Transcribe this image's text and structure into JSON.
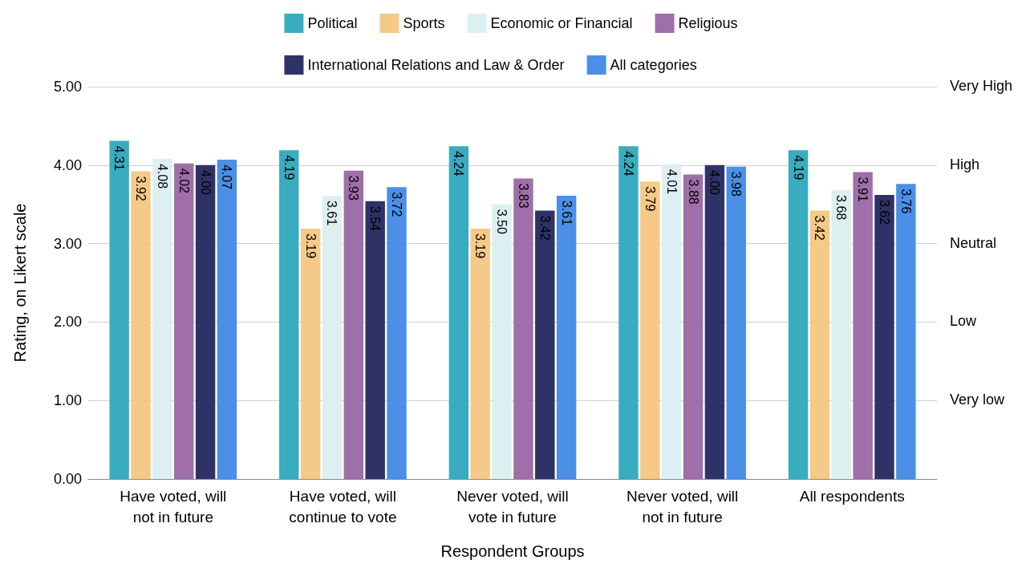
{
  "chart_data": {
    "type": "bar",
    "xlabel": "Respondent Groups",
    "ylabel": "Rating, on Likert scale",
    "categories": [
      "Have voted, will\nnot in future",
      "Have voted, will\ncontinue to vote",
      "Never voted, will\nvote in future",
      "Never voted, will\nnot in future",
      "All respondents"
    ],
    "series": [
      {
        "name": "Political",
        "color": "#3aacbf",
        "values": [
          4.31,
          4.19,
          4.24,
          4.24,
          4.19
        ],
        "value_labels": [
          "4.31",
          "4.19",
          "4.24",
          "4.24",
          "4.19"
        ]
      },
      {
        "name": "Sports",
        "color": "#f5c987",
        "values": [
          3.92,
          3.19,
          3.19,
          3.79,
          3.42
        ],
        "value_labels": [
          "3.92",
          "3.19",
          "3.19",
          "3.79",
          "3.42"
        ]
      },
      {
        "name": "Economic or Financial",
        "color": "#dcf0f2",
        "values": [
          4.08,
          3.61,
          3.5,
          4.01,
          3.68
        ],
        "value_labels": [
          "4.08",
          "3.61",
          "3.50",
          "4.01",
          "3.68"
        ]
      },
      {
        "name": "Religious",
        "color": "#9e6fa8",
        "values": [
          4.02,
          3.93,
          3.83,
          3.88,
          3.91
        ],
        "value_labels": [
          "4.02",
          "3.93",
          "3.83",
          "3.88",
          "3.91"
        ]
      },
      {
        "name": "International Relations and Law & Order",
        "color": "#2e3266",
        "values": [
          4.0,
          3.54,
          3.42,
          4.0,
          3.62
        ],
        "value_labels": [
          "4.00",
          "3.54",
          "3.42",
          "4.00",
          "3.62"
        ]
      },
      {
        "name": "All categories",
        "color": "#4c8fe6",
        "values": [
          4.07,
          3.72,
          3.61,
          3.98,
          3.76
        ],
        "value_labels": [
          "4.07",
          "3.72",
          "3.61",
          "3.98",
          "3.76"
        ]
      }
    ],
    "ylim": [
      0,
      5
    ],
    "yticks": [
      {
        "value": 0,
        "label": "0.00"
      },
      {
        "value": 1,
        "label": "1.00"
      },
      {
        "value": 2,
        "label": "2.00"
      },
      {
        "value": 3,
        "label": "3.00"
      },
      {
        "value": 4,
        "label": "4.00"
      },
      {
        "value": 5,
        "label": "5.00"
      }
    ],
    "annotations": [
      "Very low",
      "Low",
      "Neutral",
      "High",
      "Very High"
    ],
    "grid": "y",
    "legend": "top"
  }
}
